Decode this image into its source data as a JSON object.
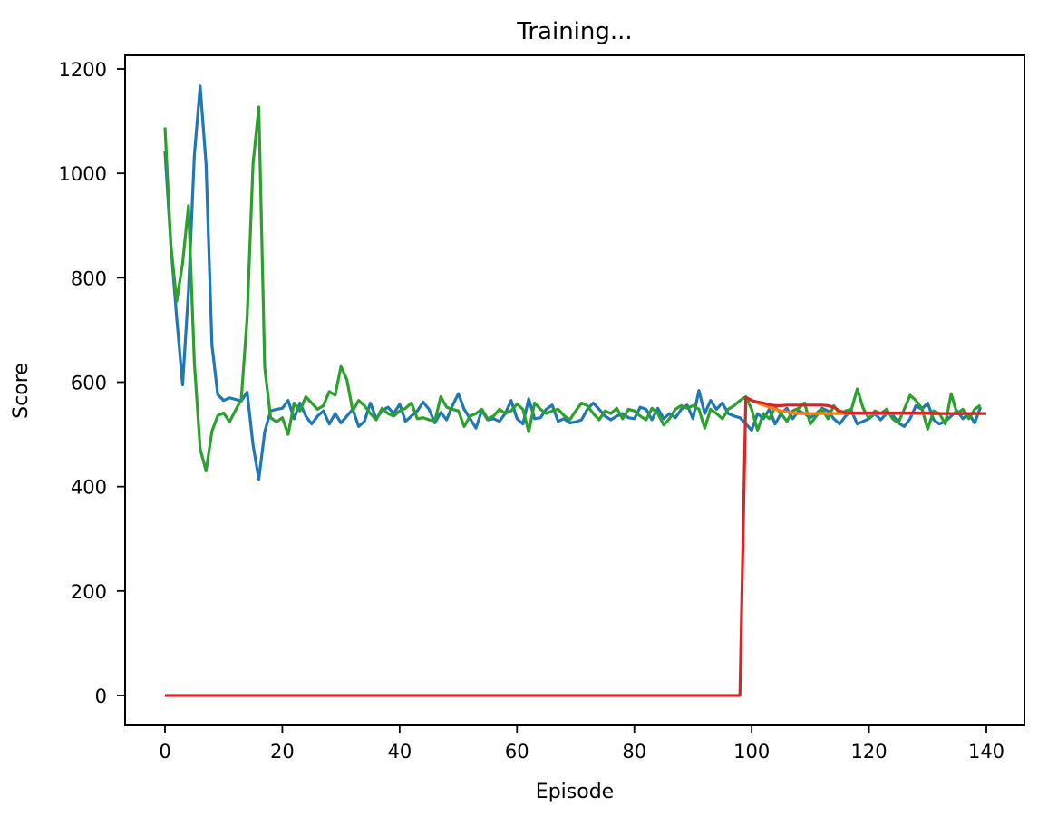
{
  "chart_data": {
    "type": "line",
    "title": "Training...",
    "xlabel": "Episode",
    "ylabel": "Score",
    "xlim": [
      -7,
      146
    ],
    "ylim": [
      -57,
      1225
    ],
    "grid": false,
    "legend": null,
    "xticks": [
      0,
      20,
      40,
      60,
      80,
      100,
      120,
      140
    ],
    "yticks": [
      0,
      200,
      400,
      600,
      800,
      1000,
      1200
    ],
    "series": [
      {
        "name": "series-blue",
        "color": "#1f77b4",
        "start_x": 0,
        "values": [
          1042,
          862,
          723,
          595,
          775,
          1035,
          1167,
          1018,
          671,
          576,
          565,
          570,
          567,
          564,
          581,
          480,
          414,
          505,
          545,
          548,
          550,
          565,
          530,
          560,
          535,
          520,
          535,
          545,
          520,
          540,
          522,
          535,
          548,
          515,
          525,
          560,
          530,
          545,
          552,
          540,
          558,
          525,
          535,
          545,
          562,
          548,
          522,
          542,
          528,
          555,
          578,
          548,
          530,
          512,
          546,
          528,
          530,
          525,
          540,
          565,
          530,
          520,
          568,
          530,
          532,
          548,
          556,
          525,
          530,
          522,
          524,
          528,
          548,
          560,
          548,
          535,
          528,
          535,
          540,
          532,
          530,
          552,
          548,
          528,
          550,
          530,
          540,
          532,
          548,
          556,
          530,
          584,
          540,
          565,
          548,
          560,
          540,
          535,
          532,
          520,
          508,
          540,
          530,
          548,
          520,
          540,
          550,
          530,
          545,
          540,
          532,
          540,
          550,
          545,
          530,
          520,
          535,
          545,
          520,
          525,
          530,
          540,
          528,
          540,
          538,
          522,
          515,
          530,
          555,
          548,
          560,
          528,
          520,
          525,
          535,
          545,
          530,
          540,
          522,
          552
        ]
      },
      {
        "name": "series-green",
        "color": "#2ca02c",
        "start_x": 0,
        "values": [
          1088,
          862,
          755,
          828,
          938,
          637,
          472,
          430,
          506,
          536,
          541,
          524,
          546,
          567,
          723,
          1018,
          1127,
          628,
          532,
          524,
          532,
          500,
          560,
          545,
          572,
          560,
          548,
          555,
          582,
          575,
          630,
          605,
          545,
          565,
          555,
          540,
          528,
          550,
          540,
          535,
          545,
          550,
          560,
          530,
          532,
          528,
          526,
          572,
          552,
          548,
          545,
          515,
          535,
          540,
          548,
          530,
          535,
          548,
          540,
          545,
          558,
          548,
          505,
          560,
          548,
          540,
          545,
          548,
          536,
          528,
          545,
          560,
          555,
          540,
          528,
          545,
          540,
          550,
          530,
          548,
          545,
          535,
          528,
          550,
          540,
          518,
          530,
          548,
          555,
          550,
          555,
          548,
          512,
          548,
          540,
          530,
          548,
          555,
          565,
          572,
          548,
          508,
          540,
          530,
          552,
          540,
          525,
          545,
          550,
          560,
          520,
          535,
          548,
          530,
          555,
          540,
          545,
          548,
          587,
          550,
          530,
          545,
          540,
          548,
          530,
          522,
          548,
          575,
          565,
          550,
          510,
          545,
          540,
          520,
          578,
          540,
          548,
          530,
          548,
          556
        ]
      },
      {
        "name": "series-orange",
        "color": "#ff7f0e",
        "start_x": 99,
        "values": [
          571,
          565,
          560,
          556,
          552,
          548,
          545,
          543,
          541,
          540,
          540,
          540,
          540,
          540,
          540,
          540,
          540,
          540,
          540,
          540,
          540,
          540,
          540,
          540,
          540,
          540,
          540,
          540,
          540,
          540,
          540,
          540,
          540,
          540,
          540,
          540,
          540,
          540,
          540,
          540,
          540
        ]
      },
      {
        "name": "series-red",
        "color": "#d62728",
        "start_x": 0,
        "values": [
          0,
          0,
          0,
          0,
          0,
          0,
          0,
          0,
          0,
          0,
          0,
          0,
          0,
          0,
          0,
          0,
          0,
          0,
          0,
          0,
          0,
          0,
          0,
          0,
          0,
          0,
          0,
          0,
          0,
          0,
          0,
          0,
          0,
          0,
          0,
          0,
          0,
          0,
          0,
          0,
          0,
          0,
          0,
          0,
          0,
          0,
          0,
          0,
          0,
          0,
          0,
          0,
          0,
          0,
          0,
          0,
          0,
          0,
          0,
          0,
          0,
          0,
          0,
          0,
          0,
          0,
          0,
          0,
          0,
          0,
          0,
          0,
          0,
          0,
          0,
          0,
          0,
          0,
          0,
          0,
          0,
          0,
          0,
          0,
          0,
          0,
          0,
          0,
          0,
          0,
          0,
          0,
          0,
          0,
          0,
          0,
          0,
          0,
          0,
          571,
          565,
          562,
          560,
          557,
          555,
          555,
          556,
          556,
          556,
          556,
          556,
          556,
          556,
          555,
          552,
          545,
          541,
          541,
          541,
          541,
          541,
          541,
          541,
          541,
          541,
          541,
          541,
          541,
          541,
          541,
          541,
          540,
          540,
          540,
          540,
          540,
          540,
          540,
          540,
          540,
          540
        ]
      }
    ]
  },
  "axes": {
    "title": "Training...",
    "xlabel": "Episode",
    "ylabel": "Score",
    "xtick_labels": [
      "0",
      "20",
      "40",
      "60",
      "80",
      "100",
      "120",
      "140"
    ],
    "ytick_labels": [
      "0",
      "200",
      "400",
      "600",
      "800",
      "1000",
      "1200"
    ]
  }
}
